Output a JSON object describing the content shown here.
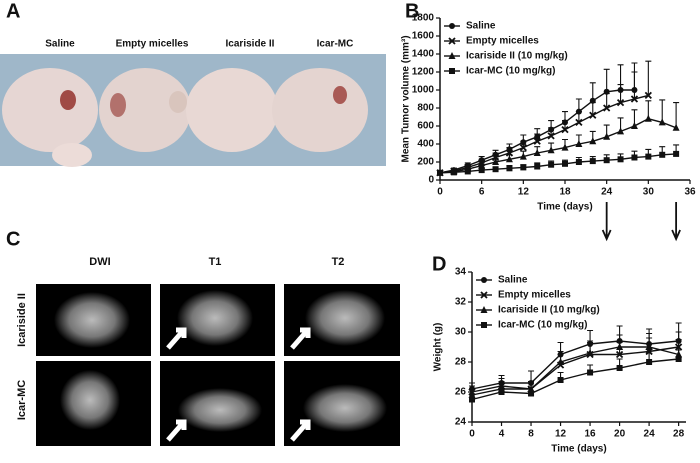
{
  "panel_labels": [
    "A",
    "B",
    "C",
    "D"
  ],
  "photo_labels": [
    "Saline",
    "Empty micelles",
    "Icariside II",
    "Icar-MC"
  ],
  "mri": {
    "columns": [
      "DWI",
      "T1",
      "T2"
    ],
    "rows": [
      "Icariside II",
      "Icar-MC"
    ]
  },
  "chart_data": [
    {
      "type": "line",
      "xlabel": "Time (days)",
      "ylabel": "Mean Tumor volume (mm³)",
      "xlim": [
        0,
        36
      ],
      "xticks": [
        0,
        6,
        12,
        18,
        24,
        30,
        36
      ],
      "ylim": [
        0,
        1800
      ],
      "yticks": [
        0,
        200,
        400,
        600,
        800,
        1000,
        1200,
        1400,
        1600,
        1800
      ],
      "legend": "upper left",
      "arrows": [
        24,
        34
      ],
      "series": [
        {
          "name": "Saline",
          "marker": "circle",
          "color": "#111111",
          "x": [
            0,
            2,
            4,
            6,
            8,
            10,
            12,
            14,
            16,
            18,
            20,
            22,
            24,
            26,
            28
          ],
          "values": [
            80,
            110,
            160,
            220,
            280,
            340,
            420,
            480,
            560,
            640,
            760,
            880,
            980,
            1000,
            1000
          ],
          "errors": [
            10,
            20,
            30,
            40,
            50,
            60,
            80,
            90,
            100,
            120,
            140,
            200,
            250,
            280,
            300
          ]
        },
        {
          "name": "Empty micelles",
          "marker": "x",
          "color": "#111111",
          "x": [
            0,
            2,
            4,
            6,
            8,
            10,
            12,
            14,
            16,
            18,
            20,
            22,
            24,
            26,
            28,
            30
          ],
          "values": [
            80,
            100,
            140,
            190,
            250,
            300,
            360,
            430,
            490,
            560,
            640,
            720,
            800,
            860,
            900,
            940
          ],
          "errors": [
            10,
            20,
            30,
            40,
            50,
            60,
            70,
            80,
            90,
            100,
            120,
            140,
            160,
            200,
            300,
            380
          ]
        },
        {
          "name": "Icariside II (10 mg/kg)",
          "marker": "triangle",
          "color": "#111111",
          "x": [
            0,
            2,
            4,
            6,
            8,
            10,
            12,
            14,
            16,
            18,
            20,
            22,
            24,
            26,
            28,
            30,
            32,
            34
          ],
          "values": [
            80,
            90,
            120,
            160,
            200,
            230,
            260,
            300,
            330,
            360,
            400,
            430,
            480,
            540,
            600,
            680,
            640,
            580
          ],
          "errors": [
            10,
            15,
            20,
            30,
            40,
            50,
            60,
            70,
            80,
            90,
            100,
            110,
            130,
            150,
            180,
            200,
            250,
            280
          ]
        },
        {
          "name": "Icar-MC (10 mg/kg)",
          "marker": "square",
          "color": "#111111",
          "x": [
            0,
            2,
            4,
            6,
            8,
            10,
            12,
            14,
            16,
            18,
            20,
            22,
            24,
            26,
            28,
            30,
            32,
            34
          ],
          "values": [
            80,
            85,
            95,
            110,
            120,
            130,
            140,
            150,
            170,
            180,
            200,
            210,
            220,
            230,
            250,
            260,
            280,
            290
          ],
          "errors": [
            10,
            10,
            15,
            20,
            20,
            30,
            30,
            40,
            40,
            40,
            50,
            50,
            60,
            60,
            70,
            80,
            90,
            100
          ]
        }
      ]
    },
    {
      "type": "line",
      "xlabel": "Time (days)",
      "ylabel": "Weight (g)",
      "xlim": [
        0,
        29
      ],
      "xticks": [
        0,
        4,
        8,
        12,
        16,
        20,
        24,
        28
      ],
      "ylim": [
        24,
        34
      ],
      "yticks": [
        24,
        26,
        28,
        30,
        32,
        34
      ],
      "legend": "upper left",
      "series": [
        {
          "name": "Saline",
          "marker": "circle",
          "color": "#111111",
          "x": [
            0,
            4,
            8,
            12,
            16,
            20,
            24,
            28
          ],
          "values": [
            26.2,
            26.6,
            26.6,
            28.5,
            29.2,
            29.4,
            29.2,
            29.4
          ],
          "errors": [
            0.4,
            0.5,
            0.8,
            0.8,
            0.9,
            1.0,
            1.0,
            1.2
          ]
        },
        {
          "name": "Empty micelles",
          "marker": "x",
          "color": "#111111",
          "x": [
            0,
            4,
            8,
            12,
            16,
            20,
            24,
            28
          ],
          "values": [
            26.0,
            26.4,
            26.2,
            27.8,
            28.5,
            28.5,
            28.7,
            29.0
          ],
          "errors": [
            0.4,
            0.5,
            0.5,
            0.7,
            0.8,
            0.8,
            0.9,
            1.0
          ]
        },
        {
          "name": "Icariside II (10 mg/kg)",
          "marker": "triangle",
          "color": "#111111",
          "x": [
            0,
            4,
            8,
            12,
            16,
            20,
            24,
            28
          ],
          "values": [
            25.8,
            26.2,
            26.2,
            28.0,
            28.6,
            29.0,
            29.0,
            28.5
          ],
          "errors": [
            0.4,
            0.5,
            0.5,
            0.7,
            0.8,
            0.8,
            0.9,
            1.0
          ]
        },
        {
          "name": "Icar-MC (10 mg/kg)",
          "marker": "square",
          "color": "#111111",
          "x": [
            0,
            4,
            8,
            12,
            16,
            20,
            24,
            28
          ],
          "values": [
            25.5,
            26.0,
            25.9,
            26.8,
            27.3,
            27.6,
            28.0,
            28.2
          ],
          "errors": [
            0.3,
            0.4,
            0.4,
            0.5,
            0.5,
            0.6,
            0.6,
            0.6
          ]
        }
      ]
    }
  ]
}
